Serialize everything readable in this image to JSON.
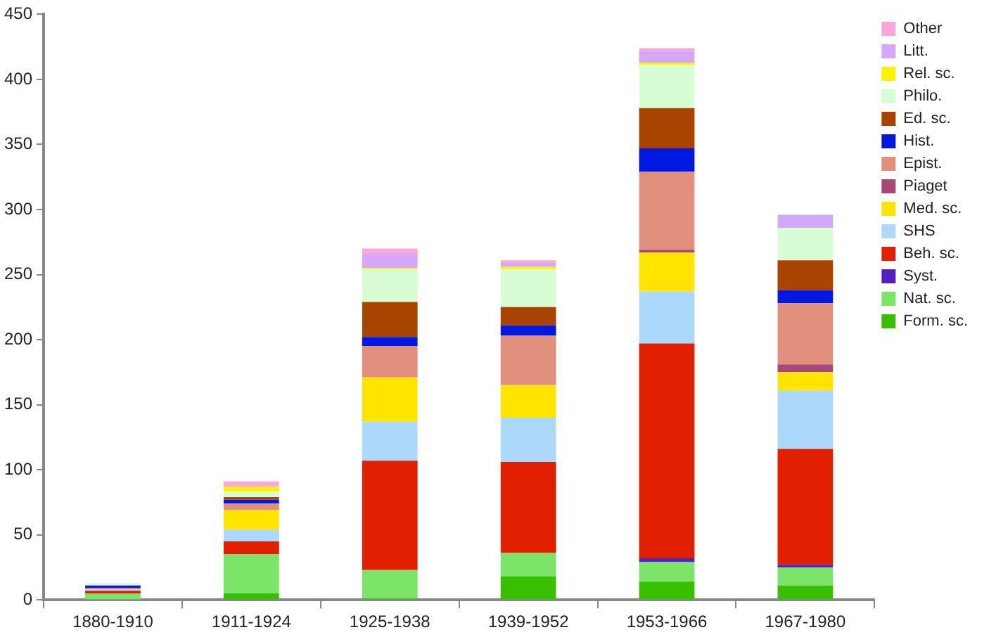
{
  "chart_data": {
    "type": "bar",
    "stacked": true,
    "categories": [
      "1880-1910",
      "1911-1924",
      "1925-1938",
      "1939-1952",
      "1953-1966",
      "1967-1980"
    ],
    "ylim": [
      0,
      450
    ],
    "yticks": [
      0,
      50,
      100,
      150,
      200,
      250,
      300,
      350,
      400,
      450
    ],
    "grid": false,
    "legend": "right",
    "series": [
      {
        "name": "Form. sc.",
        "color": "#38c000",
        "values": [
          0,
          5,
          1,
          18,
          14,
          11
        ]
      },
      {
        "name": "Nat. sc.",
        "color": "#7ce468",
        "values": [
          5,
          30,
          22,
          18,
          15,
          14
        ]
      },
      {
        "name": "Syst.",
        "color": "#5020c0",
        "values": [
          0,
          0,
          0,
          0,
          3,
          2
        ]
      },
      {
        "name": "Beh. sc.",
        "color": "#e02000",
        "values": [
          2,
          10,
          84,
          70,
          165,
          89
        ]
      },
      {
        "name": "SHS",
        "color": "#acd8fc",
        "values": [
          1,
          9,
          30,
          34,
          40,
          45
        ]
      },
      {
        "name": "Med. sc.",
        "color": "#ffe400",
        "values": [
          0,
          15,
          34,
          25,
          30,
          14
        ]
      },
      {
        "name": "Piaget",
        "color": "#a84878",
        "values": [
          0,
          0,
          0,
          0,
          2,
          6
        ]
      },
      {
        "name": "Epist.",
        "color": "#e0907c",
        "values": [
          1,
          5,
          24,
          38,
          60,
          47
        ]
      },
      {
        "name": "Hist.",
        "color": "#0018e0",
        "values": [
          2,
          3,
          7,
          8,
          18,
          10
        ]
      },
      {
        "name": "Ed. sc.",
        "color": "#a84400",
        "values": [
          0,
          2,
          27,
          14,
          31,
          23
        ]
      },
      {
        "name": "Philo.",
        "color": "#d8fcd4",
        "values": [
          2,
          4,
          25,
          29,
          33,
          25
        ]
      },
      {
        "name": "Rel. sc.",
        "color": "#fff200",
        "values": [
          0,
          4,
          1,
          2,
          2,
          0
        ]
      },
      {
        "name": "Litt.",
        "color": "#d4a8f8",
        "values": [
          0,
          0,
          11,
          3,
          9,
          10
        ]
      },
      {
        "name": "Other",
        "color": "#f7a8d8",
        "values": [
          0,
          4,
          4,
          2,
          2,
          0
        ]
      }
    ]
  }
}
